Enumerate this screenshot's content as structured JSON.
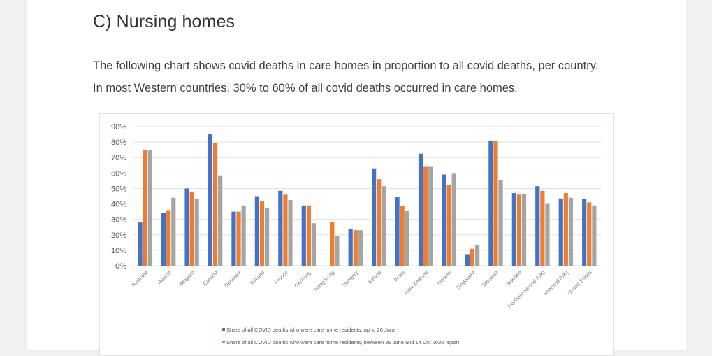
{
  "heading": "C) Nursing homes",
  "paragraphs": [
    "The following chart shows covid deaths in care homes in proportion to all covid deaths, per country.",
    "In most Western countries, 30% to 60% of all covid deaths occurred in care homes."
  ],
  "colors": {
    "series1": "#4472C4",
    "series2": "#ED7D31",
    "series3": "#A5A5A5",
    "gridline": "#E0E0E0",
    "text": "#404040"
  },
  "chart_data": {
    "type": "bar",
    "title": "",
    "xlabel": "",
    "ylabel": "",
    "ylim": [
      0,
      90
    ],
    "yticks": [
      "0%",
      "10%",
      "20%",
      "30%",
      "40%",
      "50%",
      "60%",
      "70%",
      "80%",
      "90%"
    ],
    "grid": true,
    "legend_position": "bottom",
    "categories": [
      "Australia",
      "Austria",
      "Belgium",
      "Canada",
      "Denmark",
      "Finland",
      "France",
      "Germany",
      "Hong Kong",
      "Hungary",
      "Ireland",
      "Israel",
      "New Zealand",
      "Norway",
      "Singapore",
      "Slovenia",
      "Sweden",
      "Northern Ireland (UK)",
      "Scotland (UK)",
      "United States"
    ],
    "series": [
      {
        "name": "Share of all COVID deaths who were care home residents, up to 26 June",
        "values": [
          28,
          34,
          50,
          85,
          35,
          45,
          48.5,
          39,
          null,
          24,
          63,
          44.5,
          72.5,
          59,
          7.5,
          81,
          47,
          51.5,
          43.5,
          43
        ]
      },
      {
        "name": "Share of all COVID deaths who were care home residents, between 26 June and 14 Oct 2020 report",
        "values": [
          75,
          36,
          48,
          79.5,
          35,
          42,
          46,
          39,
          28.5,
          23,
          56,
          38.5,
          64,
          52.5,
          11,
          81,
          46,
          48.5,
          47,
          41
        ]
      },
      {
        "name": "",
        "values": [
          75,
          44,
          43,
          58.5,
          39,
          37.5,
          42.5,
          27.5,
          19,
          23,
          51.5,
          35.5,
          64,
          59.5,
          13.5,
          55.5,
          46.5,
          40.5,
          44,
          39
        ]
      }
    ]
  }
}
